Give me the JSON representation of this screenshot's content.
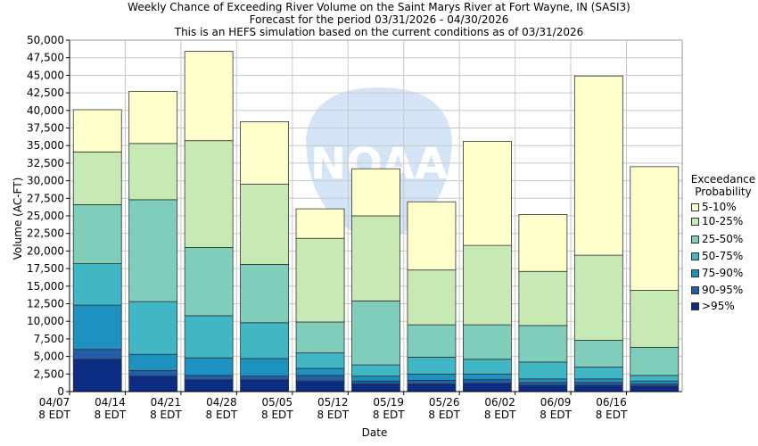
{
  "title_lines": [
    "Weekly Chance of Exceeding River Volume on the Saint Marys River at Fort Wayne, IN (SASI3)",
    "Forecast for the period 03/31/2026 - 04/30/2026",
    "This is an HEFS simulation based on the current conditions as of 03/31/2026"
  ],
  "watermark_text": "NOAA",
  "chart_data": {
    "type": "bar",
    "stacked": true,
    "title": "Weekly Chance of Exceeding River Volume on the Saint Marys River at Fort Wayne, IN (SASI3)",
    "xlabel": "Date",
    "ylabel": "Volume (AC-FT)",
    "ylim": [
      0,
      50000
    ],
    "ytick_step": 2500,
    "yticks": [
      "0",
      "2,500",
      "5,000",
      "7,500",
      "10,000",
      "12,500",
      "15,000",
      "17,500",
      "20,000",
      "22,500",
      "25,000",
      "27,500",
      "30,000",
      "32,500",
      "35,000",
      "37,500",
      "40,000",
      "42,500",
      "45,000",
      "47,500",
      "50,000"
    ],
    "xticks": [
      {
        "line1": "04/07",
        "line2": "8 EDT"
      },
      {
        "line1": "04/14",
        "line2": "8 EDT"
      },
      {
        "line1": "04/21",
        "line2": "8 EDT"
      },
      {
        "line1": "04/28",
        "line2": "8 EDT"
      },
      {
        "line1": "05/05",
        "line2": "8 EDT"
      },
      {
        "line1": "05/12",
        "line2": "8 EDT"
      },
      {
        "line1": "05/19",
        "line2": "8 EDT"
      },
      {
        "line1": "05/26",
        "line2": "8 EDT"
      },
      {
        "line1": "06/02",
        "line2": "8 EDT"
      },
      {
        "line1": "06/09",
        "line2": "8 EDT"
      },
      {
        "line1": "06/16",
        "line2": "8 EDT"
      }
    ],
    "grid": true,
    "legend_title_lines": [
      "Exceedance",
      "Probability"
    ],
    "legend_position": "right",
    "series": [
      {
        "name": "5-10%",
        "color": "#ffffcc"
      },
      {
        "name": "10-25%",
        "color": "#c7e9b4"
      },
      {
        "name": "25-50%",
        "color": "#7fcdbb"
      },
      {
        "name": "50-75%",
        "color": "#41b6c4"
      },
      {
        "name": "75-90%",
        "color": "#1d91c0"
      },
      {
        "name": "90-95%",
        "color": "#225ea8"
      },
      {
        "name": ">95%",
        "color": "#0c2c84"
      }
    ],
    "bars": [
      {
        "bounds": [
          4600,
          6000,
          12300,
          18200,
          26600,
          34100,
          40100
        ]
      },
      {
        "bounds": [
          2200,
          3000,
          5300,
          12800,
          27300,
          35300,
          42700
        ]
      },
      {
        "bounds": [
          1700,
          2300,
          4800,
          10800,
          20500,
          35700,
          48400
        ]
      },
      {
        "bounds": [
          1700,
          2200,
          4700,
          9800,
          18100,
          29500,
          38400
        ]
      },
      {
        "bounds": [
          1500,
          2300,
          3300,
          5500,
          9900,
          21800,
          26000
        ]
      },
      {
        "bounds": [
          1100,
          1500,
          2200,
          3800,
          12900,
          25000,
          31700
        ]
      },
      {
        "bounds": [
          1100,
          1600,
          2500,
          4900,
          9500,
          17300,
          27000
        ]
      },
      {
        "bounds": [
          1200,
          1700,
          2500,
          4600,
          9500,
          20800,
          35600
        ]
      },
      {
        "bounds": [
          900,
          1300,
          1800,
          4200,
          9400,
          17100,
          25200
        ]
      },
      {
        "bounds": [
          900,
          1300,
          1800,
          3500,
          7300,
          19400,
          44900
        ]
      },
      {
        "bounds": [
          800,
          1100,
          1500,
          2300,
          6300,
          14400,
          32000
        ]
      }
    ]
  }
}
